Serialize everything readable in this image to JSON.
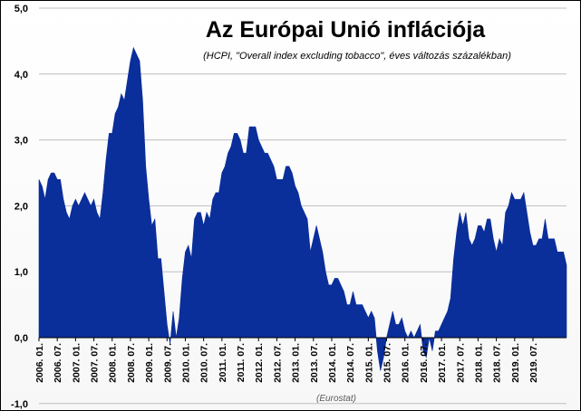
{
  "chart_data": {
    "type": "area",
    "title": "Az Európai Unió inflációja",
    "subtitle": "(HCPI, \"Overall index excluding tobacco\", éves változás százalékban)",
    "source": "(Eurostat)",
    "xlabel": "",
    "ylabel": "",
    "ylim": [
      -1.0,
      5.0
    ],
    "yticks": [
      "-1,0",
      "0,0",
      "1,0",
      "2,0",
      "3,0",
      "4,0",
      "5,0"
    ],
    "grid": true,
    "legend": "none",
    "fill_color": "#0a2e9a",
    "xticks": [
      "2006. 01.",
      "2006. 07.",
      "2007. 01.",
      "2007. 07.",
      "2008. 01.",
      "2008. 07.",
      "2009. 01.",
      "2009. 07.",
      "2010. 01.",
      "2010. 07.",
      "2011. 01.",
      "2011. 07.",
      "2012. 01.",
      "2012. 07.",
      "2013. 01.",
      "2013. 07.",
      "2014. 01.",
      "2014. 07.",
      "2015. 01.",
      "2015. 07.",
      "2016. 01.",
      "2016. 07.",
      "2017. 01.",
      "2017. 07.",
      "2018. 01.",
      "2018. 07.",
      "2019. 01.",
      "2019. 07."
    ],
    "series": [
      {
        "values": [
          2.4,
          2.3,
          2.1,
          2.4,
          2.5,
          2.5,
          2.4,
          2.4,
          2.1,
          1.9,
          1.8,
          2.0,
          2.1,
          2.0,
          2.1,
          2.2,
          2.1,
          2.0,
          2.1,
          1.9,
          1.8,
          2.2,
          2.7,
          3.1,
          3.1,
          3.4,
          3.5,
          3.7,
          3.6,
          3.9,
          4.2,
          4.4,
          4.3,
          4.2,
          3.6,
          2.6,
          2.1,
          1.7,
          1.8,
          1.2,
          1.2,
          0.7,
          0.2,
          -0.1,
          0.4,
          0.0,
          0.3,
          0.9,
          1.3,
          1.4,
          1.2,
          1.8,
          1.9,
          1.9,
          1.7,
          1.9,
          1.8,
          2.1,
          2.2,
          2.2,
          2.5,
          2.6,
          2.8,
          2.9,
          3.1,
          3.1,
          3.0,
          2.8,
          2.8,
          3.2,
          3.2,
          3.2,
          3.0,
          2.9,
          2.8,
          2.8,
          2.7,
          2.6,
          2.4,
          2.4,
          2.4,
          2.6,
          2.6,
          2.5,
          2.3,
          2.2,
          2.0,
          1.9,
          1.8,
          1.3,
          1.5,
          1.7,
          1.5,
          1.3,
          1.0,
          0.8,
          0.8,
          0.9,
          0.9,
          0.8,
          0.7,
          0.5,
          0.5,
          0.7,
          0.5,
          0.5,
          0.5,
          0.4,
          0.3,
          0.4,
          0.3,
          -0.2,
          -0.5,
          -0.3,
          0.0,
          0.2,
          0.4,
          0.2,
          0.2,
          0.3,
          0.1,
          0.0,
          0.1,
          0.0,
          0.1,
          0.2,
          -0.2,
          -0.3,
          0.0,
          -0.2,
          0.1,
          0.1,
          0.2,
          0.3,
          0.4,
          0.6,
          1.2,
          1.6,
          1.9,
          1.7,
          1.9,
          1.5,
          1.4,
          1.5,
          1.7,
          1.7,
          1.6,
          1.8,
          1.8,
          1.5,
          1.3,
          1.5,
          1.4,
          1.9,
          2.0,
          2.2,
          2.1,
          2.1,
          2.1,
          2.2,
          1.9,
          1.6,
          1.4,
          1.4,
          1.5,
          1.5,
          1.8,
          1.5,
          1.5,
          1.5,
          1.3,
          1.3,
          1.3,
          1.1
        ]
      }
    ]
  }
}
